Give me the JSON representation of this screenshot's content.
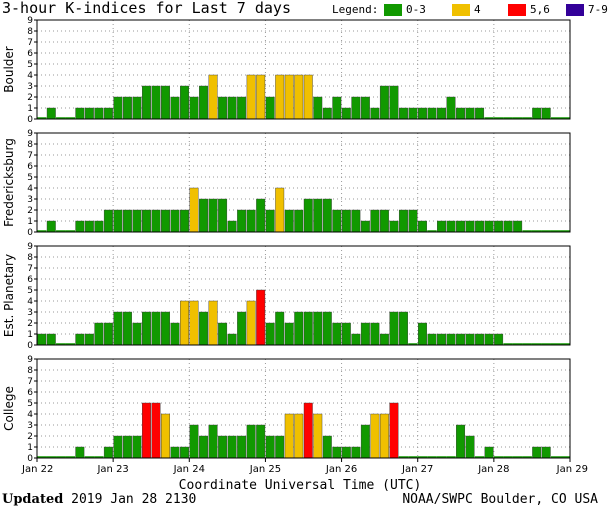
{
  "chart_data": {
    "type": "bar",
    "title": "3-hour K-indices for Last 7 days",
    "legend": {
      "label": "Legend:",
      "placement": "top-right",
      "items": [
        {
          "label": "0-3",
          "color": "#119900"
        },
        {
          "label": "4",
          "color": "#f0c000"
        },
        {
          "label": "5,6",
          "color": "#ff0000"
        },
        {
          "label": "7-9",
          "color": "#330099"
        }
      ]
    },
    "ylim": [
      0,
      9
    ],
    "yticks": [
      "0",
      "1",
      "2",
      "3",
      "4",
      "5",
      "6",
      "7",
      "8",
      "9"
    ],
    "xticks": [
      "Jan 22",
      "Jan 23",
      "Jan 24",
      "Jan 25",
      "Jan 26",
      "Jan 27",
      "Jan 28",
      "Jan 29"
    ],
    "xlabel": "Coordinate Universal Time (UTC)",
    "series": [
      {
        "name": "Boulder",
        "values": [
          0,
          1,
          0,
          0,
          1,
          1,
          1,
          1,
          2,
          2,
          2,
          3,
          3,
          3,
          2,
          3,
          2,
          3,
          4,
          2,
          2,
          2,
          4,
          4,
          2,
          4,
          4,
          4,
          4,
          2,
          1,
          2,
          1,
          2,
          2,
          1,
          3,
          3,
          1,
          1,
          1,
          1,
          1,
          2,
          1,
          1,
          1,
          0,
          0,
          0,
          0,
          0,
          1,
          1,
          0,
          0
        ]
      },
      {
        "name": "Fredericksburg",
        "values": [
          0,
          1,
          0,
          0,
          1,
          1,
          1,
          2,
          2,
          2,
          2,
          2,
          2,
          2,
          2,
          2,
          4,
          3,
          3,
          3,
          1,
          2,
          2,
          3,
          2,
          4,
          2,
          2,
          3,
          3,
          3,
          2,
          2,
          2,
          1,
          2,
          2,
          1,
          2,
          2,
          1,
          0,
          1,
          1,
          1,
          1,
          1,
          1,
          1,
          1,
          1,
          0,
          0,
          0,
          0,
          0
        ]
      },
      {
        "name": "Est. Planetary",
        "values": [
          1,
          1,
          0,
          0,
          1,
          1,
          2,
          2,
          3,
          3,
          2,
          3,
          3,
          3,
          2,
          4,
          4,
          3,
          4,
          2,
          1,
          3,
          4,
          5,
          2,
          3,
          2,
          3,
          3,
          3,
          3,
          2,
          2,
          1,
          2,
          2,
          1,
          3,
          3,
          0,
          2,
          1,
          1,
          1,
          1,
          1,
          1,
          1,
          1,
          0,
          0,
          0,
          0,
          0,
          0,
          0
        ]
      },
      {
        "name": "College",
        "values": [
          0,
          0,
          0,
          0,
          1,
          0,
          0,
          1,
          2,
          2,
          2,
          5,
          5,
          4,
          1,
          1,
          3,
          2,
          3,
          2,
          2,
          2,
          3,
          3,
          2,
          2,
          4,
          4,
          5,
          4,
          2,
          1,
          1,
          1,
          3,
          4,
          4,
          5,
          0,
          0,
          0,
          0,
          0,
          0,
          3,
          2,
          0,
          1,
          0,
          0,
          0,
          0,
          1,
          1,
          0,
          0
        ]
      }
    ]
  },
  "footer": {
    "updated_label": "Updated",
    "updated_value": "2019 Jan 28 2130",
    "source": "NOAA/SWPC Boulder, CO USA"
  }
}
